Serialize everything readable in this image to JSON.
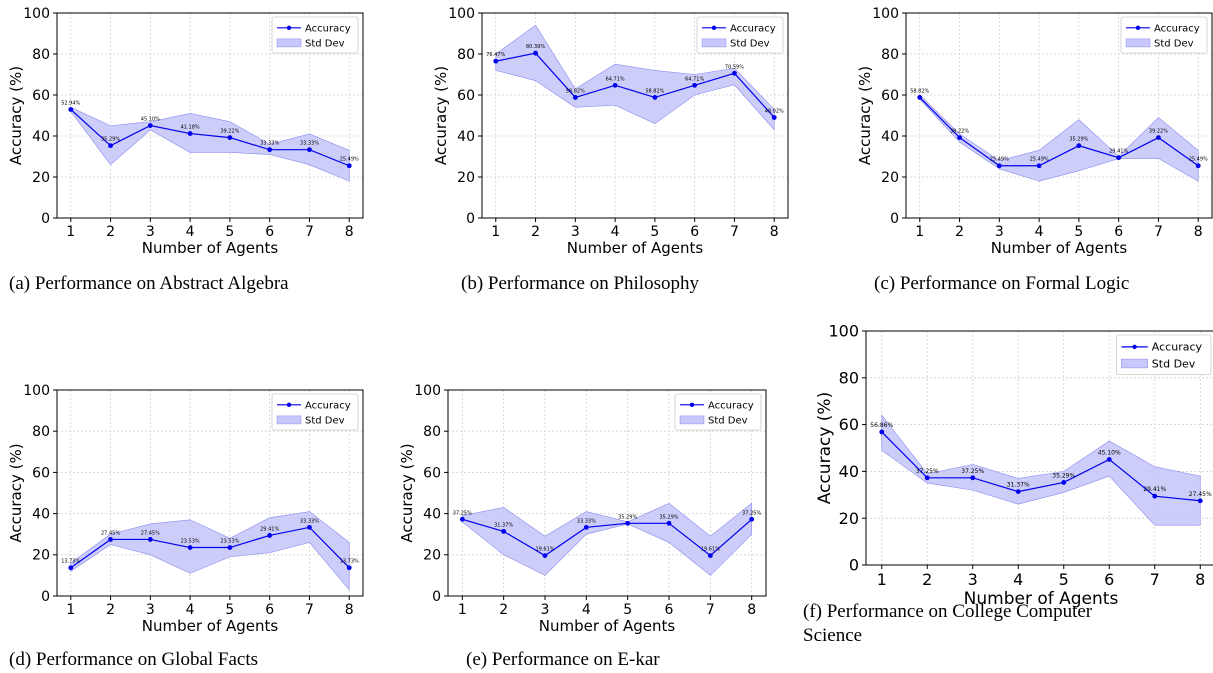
{
  "figure": {
    "legend": {
      "accuracy_label": "Accuracy",
      "std_label": "Std Dev"
    },
    "colors": {
      "line": "#0000ee",
      "band": "#c8c8fa",
      "band_stroke": "#8a8af0",
      "grid": "#d0d0d0"
    }
  },
  "chart_data": [
    {
      "type": "line",
      "caption": "(a) Performance on Abstract Algebra",
      "xlabel": "Number of Agents",
      "ylabel": "Accuracy (%)",
      "ylim": [
        0,
        100
      ],
      "yticks": [
        0,
        20,
        40,
        60,
        80,
        100
      ],
      "x": [
        1,
        2,
        3,
        4,
        5,
        6,
        7,
        8
      ],
      "grid": true,
      "legend_position": "top-right",
      "series": [
        {
          "name": "Accuracy",
          "values": [
            52.94,
            35.29,
            45.1,
            41.18,
            39.22,
            33.33,
            33.33,
            25.49
          ],
          "labels": [
            "52.94%",
            "35.29%",
            "45.10%",
            "41.18%",
            "39.22%",
            "33.33%",
            "33.33%",
            "25.49%"
          ],
          "band_upper": [
            54,
            45,
            47,
            51,
            47,
            36,
            41,
            33
          ],
          "band_lower": [
            52,
            26,
            43,
            32,
            32,
            31,
            26,
            18
          ]
        }
      ]
    },
    {
      "type": "line",
      "caption": "(b) Performance on Philosophy",
      "xlabel": "Number of Agents",
      "ylabel": "Accuracy (%)",
      "ylim": [
        0,
        100
      ],
      "yticks": [
        0,
        20,
        40,
        60,
        80,
        100
      ],
      "x": [
        1,
        2,
        3,
        4,
        5,
        6,
        7,
        8
      ],
      "grid": true,
      "legend_position": "top-right",
      "series": [
        {
          "name": "Accuracy",
          "values": [
            76.47,
            80.39,
            58.82,
            64.71,
            58.82,
            64.71,
            70.59,
            49.02
          ],
          "labels": [
            "76.47%",
            "80.39%",
            "58.82%",
            "64.71%",
            "58.82%",
            "64.71%",
            "70.59%",
            "49.02%"
          ],
          "band_upper": [
            80,
            94,
            63,
            75,
            72,
            70,
            73,
            53
          ],
          "band_lower": [
            72,
            67,
            54,
            55,
            46,
            60,
            65,
            43
          ]
        }
      ]
    },
    {
      "type": "line",
      "caption": "(c) Performance on Formal Logic",
      "xlabel": "Number of Agents",
      "ylabel": "Accuracy (%)",
      "ylim": [
        0,
        100
      ],
      "yticks": [
        0,
        20,
        40,
        60,
        80,
        100
      ],
      "x": [
        1,
        2,
        3,
        4,
        5,
        6,
        7,
        8
      ],
      "grid": true,
      "legend_position": "top-right",
      "series": [
        {
          "name": "Accuracy",
          "values": [
            58.82,
            39.22,
            25.49,
            25.49,
            35.29,
            29.41,
            39.22,
            25.49
          ],
          "labels": [
            "58.82%",
            "39.22%",
            "25.49%",
            "25.49%",
            "35.29%",
            "29.41%",
            "39.22%",
            "25.49%"
          ],
          "band_upper": [
            60,
            41,
            28,
            33,
            48,
            30,
            49,
            33
          ],
          "band_lower": [
            58,
            37,
            24,
            18,
            23,
            29,
            29,
            18
          ]
        }
      ]
    },
    {
      "type": "line",
      "caption": "(d) Performance on Global Facts",
      "xlabel": "Number of Agents",
      "ylabel": "Accuracy (%)",
      "ylim": [
        0,
        100
      ],
      "yticks": [
        0,
        20,
        40,
        60,
        80,
        100
      ],
      "x": [
        1,
        2,
        3,
        4,
        5,
        6,
        7,
        8
      ],
      "grid": true,
      "legend_position": "top-right",
      "series": [
        {
          "name": "Accuracy",
          "values": [
            13.73,
            27.45,
            27.45,
            23.53,
            23.53,
            29.41,
            33.33,
            13.73
          ],
          "labels": [
            "13.73%",
            "27.45%",
            "27.45%",
            "23.53%",
            "23.53%",
            "29.41%",
            "33.33%",
            "13.73%"
          ],
          "band_upper": [
            16,
            30,
            35,
            37,
            28,
            38,
            41,
            26
          ],
          "band_lower": [
            12,
            25,
            20,
            11,
            19,
            21,
            26,
            3
          ]
        }
      ]
    },
    {
      "type": "line",
      "caption": "(e) Performance on E-kar",
      "xlabel": "Number of Agents",
      "ylabel": "Accuracy (%)",
      "ylim": [
        0,
        100
      ],
      "yticks": [
        0,
        20,
        40,
        60,
        80,
        100
      ],
      "x": [
        1,
        2,
        3,
        4,
        5,
        6,
        7,
        8
      ],
      "grid": true,
      "legend_position": "top-right",
      "series": [
        {
          "name": "Accuracy",
          "values": [
            37.25,
            31.37,
            19.61,
            33.33,
            35.29,
            35.29,
            19.61,
            37.25
          ],
          "labels": [
            "37.25%",
            "31.37%",
            "19.61%",
            "33.33%",
            "35.29%",
            "35.29%",
            "19.61%",
            "37.25%"
          ],
          "band_upper": [
            39,
            43,
            29,
            41,
            36,
            45,
            29,
            45
          ],
          "band_lower": [
            36,
            20,
            10,
            30,
            35,
            26,
            10,
            30
          ]
        }
      ]
    },
    {
      "type": "line",
      "caption": "(f) Performance on College Computer Science",
      "caption_lines": [
        "(f) Performance on College Computer",
        "Science"
      ],
      "xlabel": "Number of Agents",
      "ylabel": "Accuracy (%)",
      "ylim": [
        0,
        100
      ],
      "yticks": [
        0,
        20,
        40,
        60,
        80,
        100
      ],
      "x": [
        1,
        2,
        3,
        4,
        5,
        6,
        7,
        8
      ],
      "grid": true,
      "legend_position": "top-right",
      "series": [
        {
          "name": "Accuracy",
          "values": [
            56.86,
            37.25,
            37.25,
            31.37,
            35.29,
            45.1,
            29.41,
            27.45
          ],
          "labels": [
            "56.86%",
            "37.25%",
            "37.25%",
            "31.37%",
            "35.29%",
            "45.10%",
            "29.41%",
            "27.45%"
          ],
          "band_upper": [
            64,
            39,
            43,
            37,
            40,
            53,
            42,
            38
          ],
          "band_lower": [
            49,
            35,
            32,
            26,
            31,
            38,
            17,
            17
          ]
        }
      ]
    }
  ]
}
